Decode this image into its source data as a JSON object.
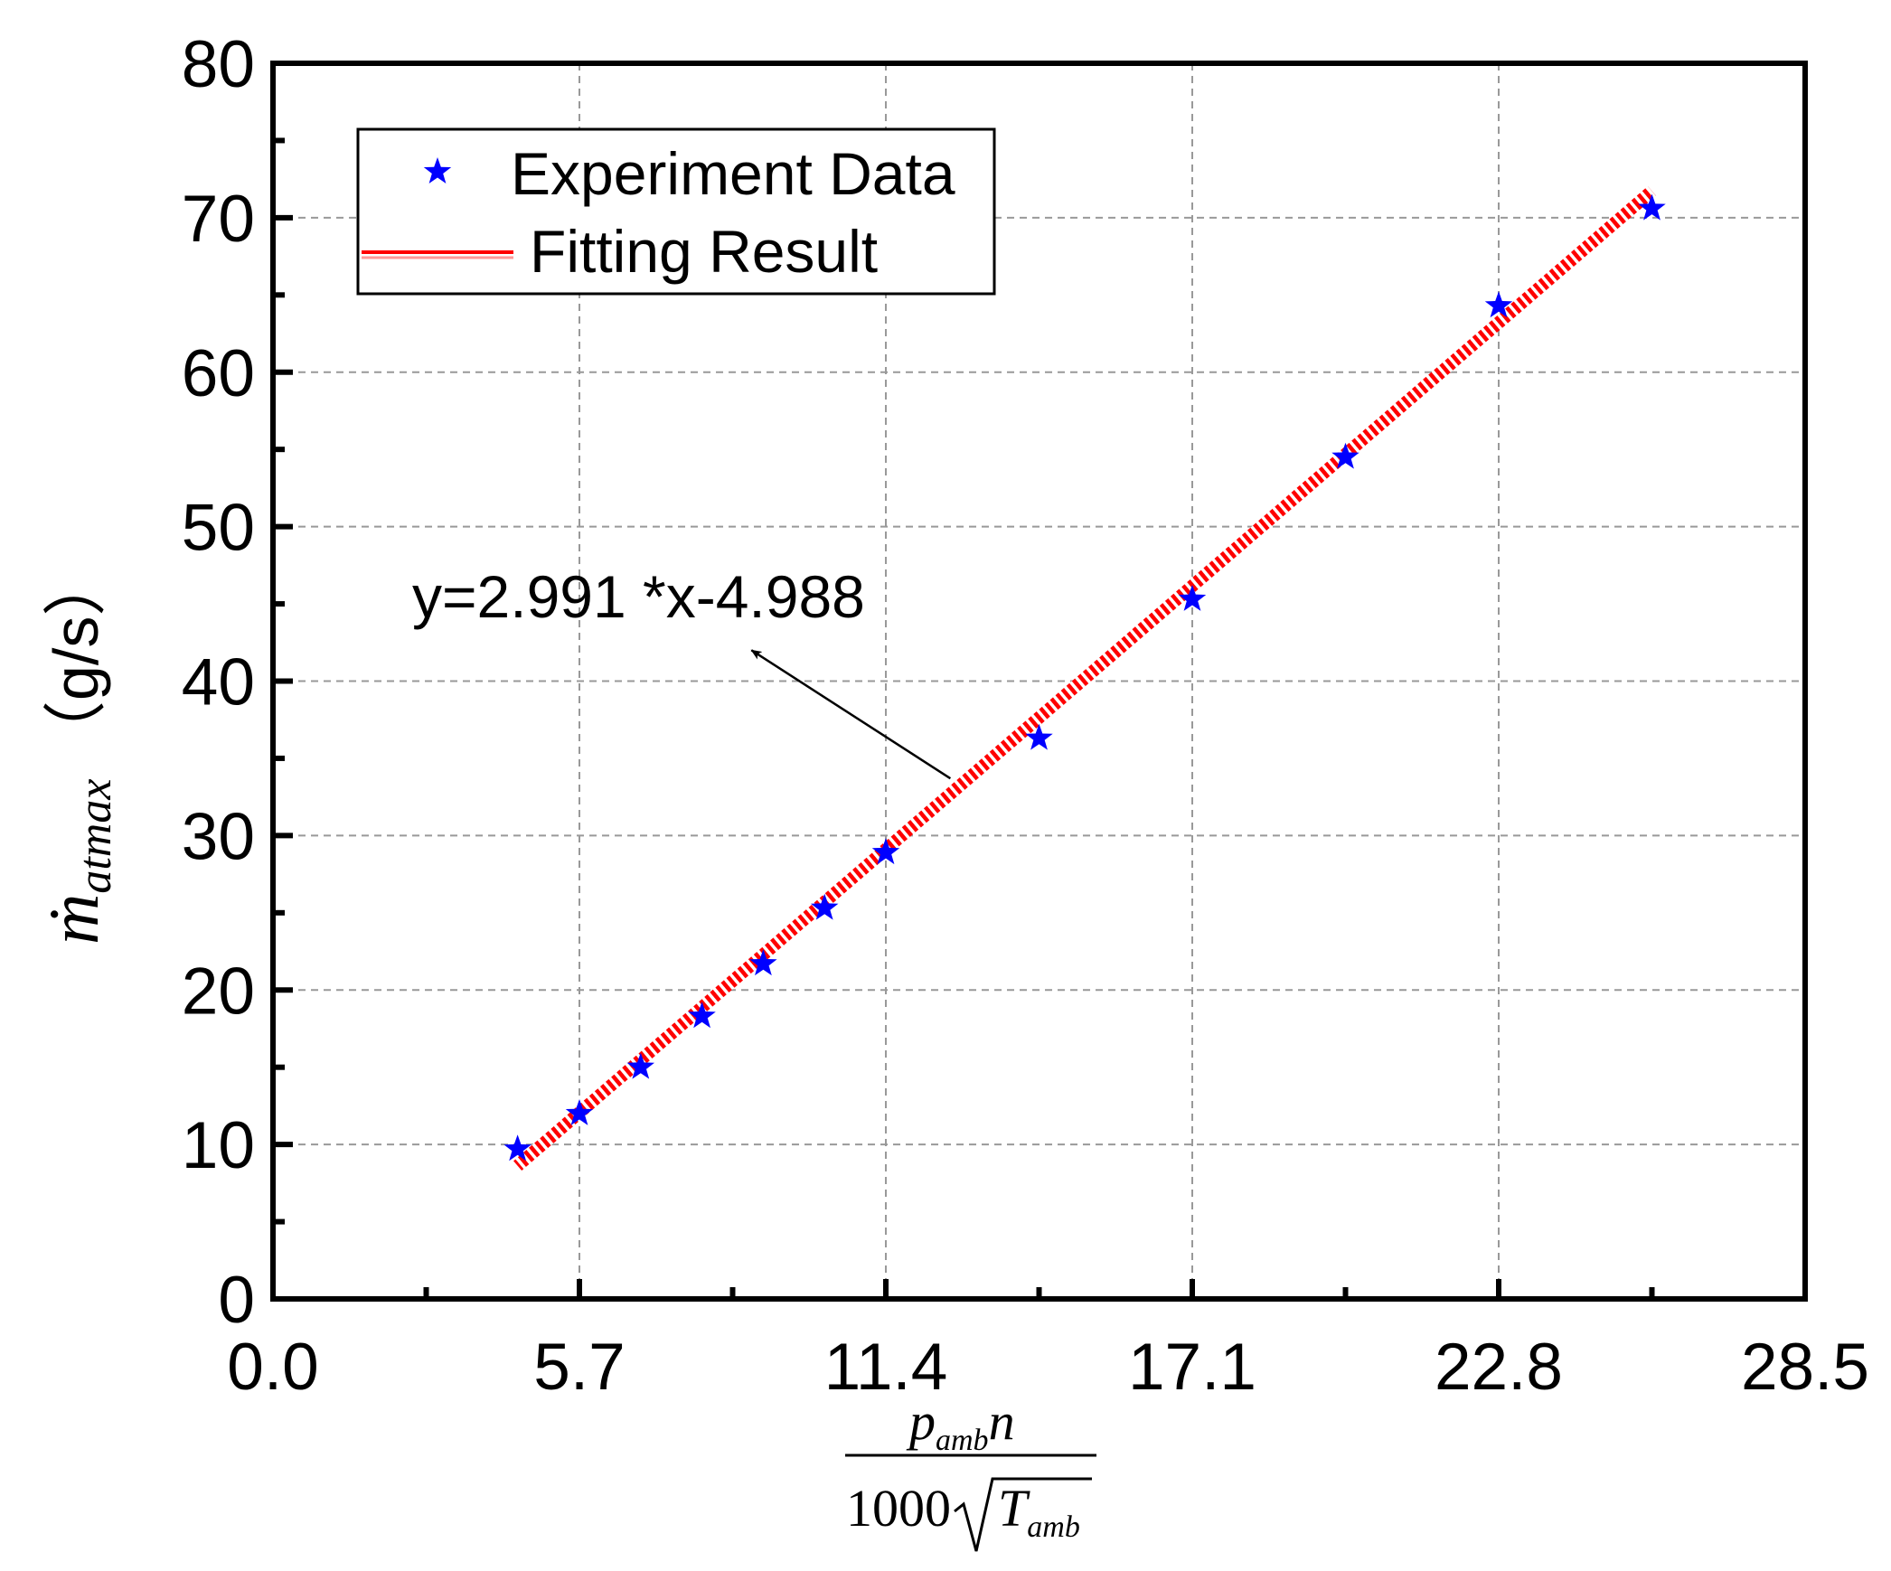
{
  "chart_data": {
    "type": "scatter",
    "title": "",
    "xlabel": {
      "num_p": "p",
      "num_p_sub": "amb",
      "num_n": "n",
      "den_num": "1000",
      "den_T": "T",
      "den_T_sub": "amb"
    },
    "ylabel": {
      "m": "ṁ",
      "sub": "atmax",
      "unit": "（g/s）"
    },
    "xlim": [
      0.0,
      28.5
    ],
    "ylim": [
      0,
      80
    ],
    "xticks": [
      "0.0",
      "5.7",
      "11.4",
      "17.1",
      "22.8",
      "28.5"
    ],
    "xtick_values": [
      0.0,
      5.7,
      11.4,
      17.1,
      22.8,
      28.5
    ],
    "yticks": [
      "0",
      "10",
      "20",
      "30",
      "40",
      "50",
      "60",
      "70",
      "80"
    ],
    "ytick_values": [
      0,
      10,
      20,
      30,
      40,
      50,
      60,
      70,
      80
    ],
    "grid": true,
    "legend_position": "top-left",
    "series": [
      {
        "name": "Experiment Data",
        "kind": "scatter",
        "marker": "star",
        "color": "#0000ff",
        "x": [
          4.55,
          5.7,
          6.84,
          7.98,
          9.12,
          10.26,
          11.4,
          14.25,
          17.1,
          19.95,
          22.8,
          25.65
        ],
        "y": [
          9.7,
          12.0,
          15.0,
          18.3,
          21.7,
          25.3,
          28.9,
          36.3,
          45.3,
          54.5,
          64.3,
          70.6
        ]
      },
      {
        "name": "Fitting Result",
        "kind": "line",
        "color": "#ff0000",
        "slope": 2.991,
        "intercept": -4.988,
        "x_range": [
          4.55,
          25.65
        ]
      }
    ],
    "annotation": {
      "text": "y=2.991 *x-4.988",
      "arrow_from": [
        12.6,
        33.7
      ],
      "arrow_to": [
        8.9,
        42.0
      ]
    }
  }
}
